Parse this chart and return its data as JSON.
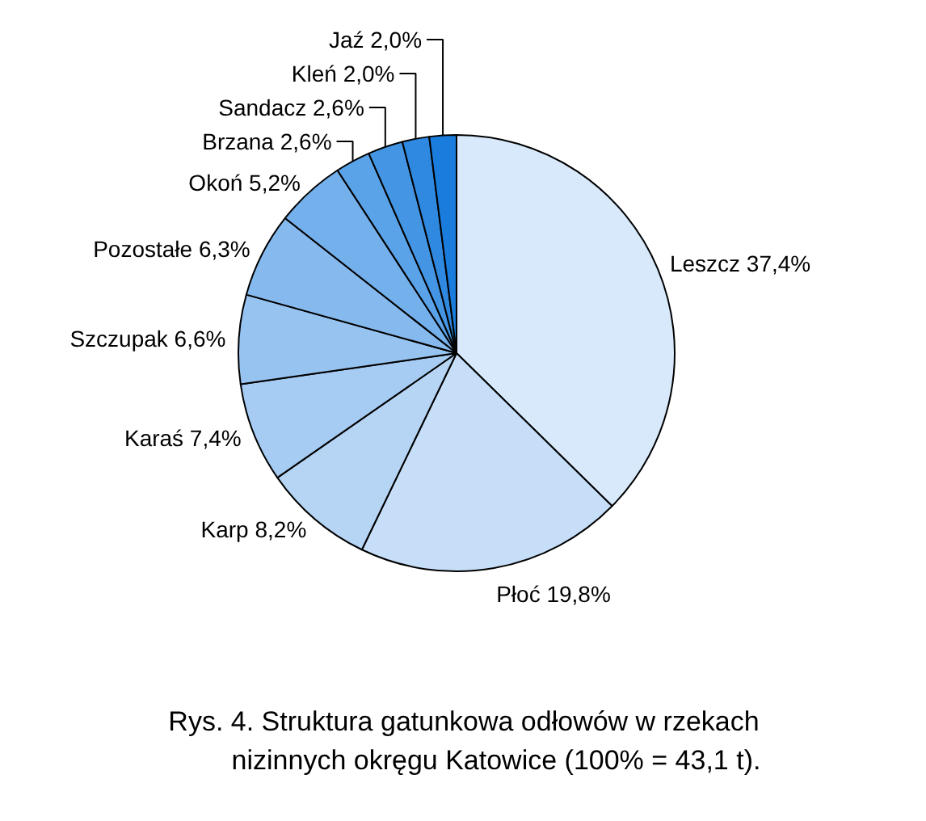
{
  "chart_data": {
    "type": "pie",
    "title": "Rys. 4. Struktura gatunkowa odłowów w rzekach nizinnych okręgu Katowice (100% = 43,1 t).",
    "categories": [
      "Leszcz",
      "Płoć",
      "Karp",
      "Karaś",
      "Szczupak",
      "Pozostałe",
      "Okoń",
      "Brzana",
      "Sandacz",
      "Kleń",
      "Jaź"
    ],
    "values": [
      37.4,
      19.8,
      8.2,
      7.4,
      6.6,
      6.3,
      5.2,
      2.6,
      2.6,
      2.0,
      2.0
    ],
    "value_labels": [
      "37,4%",
      "19,8%",
      "8,2%",
      "7,4%",
      "6,6%",
      "6,3%",
      "5,2%",
      "2,6%",
      "2,6%",
      "2,0%",
      "2,0%"
    ],
    "colors": [
      "#d7e9fb",
      "#c6def8",
      "#b6d5f5",
      "#a6ccf3",
      "#96c3f0",
      "#86baee",
      "#74b0eb",
      "#5aa3e8",
      "#4496e4",
      "#2f89e0",
      "#1a7cdc"
    ]
  }
}
